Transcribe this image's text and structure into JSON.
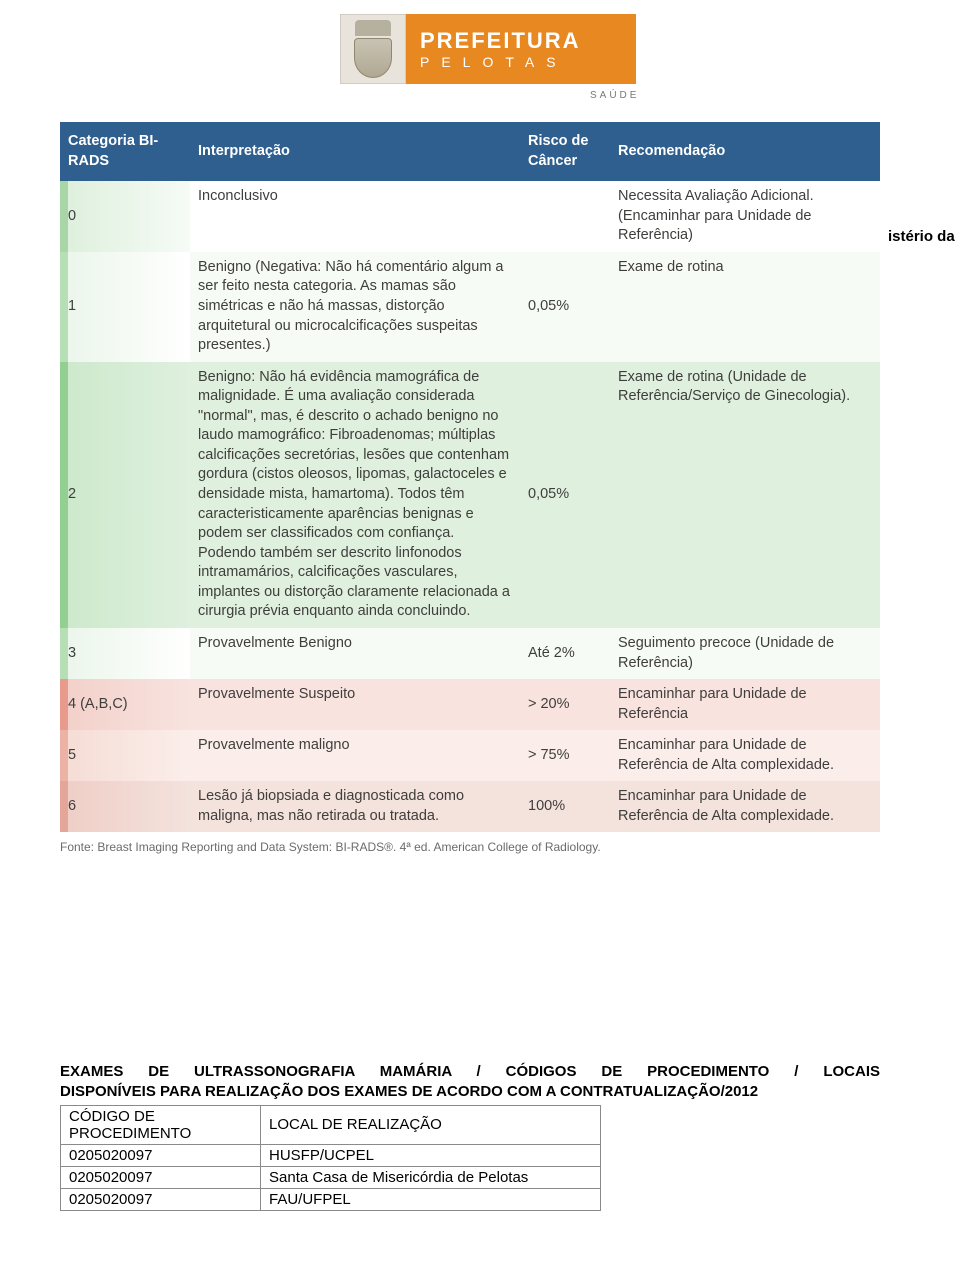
{
  "header": {
    "title": "PREFEITURA",
    "subtitle": "PELOTAS",
    "dept": "SAÚDE"
  },
  "fragment_text": "istério da",
  "birads": {
    "header_bg": "#2f5f8f",
    "header_fg": "#ffffff",
    "green_accent": "#93cf91",
    "green_fill": "#dff0de",
    "red_accent": "#e89a8c",
    "red_fill": "#f8e3df",
    "text_color": "#3f3e3c",
    "font_size_pt": 11,
    "columns": {
      "cat": "Categoria BI-RADS",
      "int": "Interpretação",
      "risk": "Risco de Câncer",
      "rec": "Recomendação"
    },
    "rows": [
      {
        "row_class": "bg-green-1",
        "cat": "0",
        "int": "Inconclusivo",
        "risk": "",
        "rec": "Necessita Avaliação Adicional. (Encaminhar para Unidade de Referência)"
      },
      {
        "row_class": "bg-green-3faint",
        "cat": "1",
        "int": "Benigno (Negativa: Não há comentário algum a ser feito nesta categoria. As mamas são simétricas e não há massas, distorção arquitetural ou microcalcificações suspeitas presentes.)",
        "risk": "0,05%",
        "rec": "Exame de rotina"
      },
      {
        "row_class": "bg-green-2solid",
        "cat": "2",
        "int": "Benigno: Não há evidência mamográfica de malignidade. É uma avaliação considerada \"normal\", mas, é descrito o achado benigno no laudo mamográfico: Fibroadenomas; múltiplas calcificações secretórias, lesões que contenham gordura (cistos oleosos, lipomas, galactoceles e densidade mista, hamartoma). Todos têm caracteristicamente aparências benignas e podem ser classificados com confiança. Podendo também ser descrito linfonodos intramamários, calcificações vasculares, implantes ou distorção claramente relacionada a cirurgia prévia enquanto ainda concluindo.",
        "risk": "0,05%",
        "rec": "Exame de rotina (Unidade de Referência/Serviço de Ginecologia)."
      },
      {
        "row_class": "bg-green-3faint",
        "cat": "3",
        "int": "Provavelmente Benigno",
        "risk": "Até 2%",
        "rec": "Seguimento precoce (Unidade de Referência)"
      },
      {
        "row_class": "bg-red",
        "cat": "4 (A,B,C)",
        "int": "Provavelmente Suspeito",
        "risk": "> 20%",
        "rec": "Encaminhar para Unidade de Referência"
      },
      {
        "row_class": "bg-red-2",
        "cat": "5",
        "int": "Provavelmente maligno",
        "risk": "> 75%",
        "rec": "Encaminhar para Unidade de Referência de Alta complexidade."
      },
      {
        "row_class": "bg-red-3",
        "cat": "6",
        "int": "Lesão já biopsiada e diagnosticada como maligna, mas não retirada ou tratada.",
        "risk": "100%",
        "rec": "Encaminhar para Unidade de Referência de Alta complexidade."
      }
    ],
    "source": "Fonte: Breast Imaging Reporting and Data System: BI-RADS®. 4ª ed. American College of Radiology."
  },
  "section2": {
    "heading_line1": "EXAMES DE ULTRASSONOGRAFIA MAMÁRIA / CÓDIGOS DE PROCEDIMENTO / LOCAIS",
    "heading_line2": "DISPONÍVEIS PARA REALIZAÇÃO DOS EXAMES DE ACORDO COM A CONTRATUALIZAÇÃO/2012",
    "table": {
      "col1_header": "CÓDIGO DE PROCEDIMENTO",
      "col2_header": "LOCAL DE REALIZAÇÃO",
      "rows": [
        {
          "code": "0205020097",
          "place": "HUSFP/UCPEL"
        },
        {
          "code": "0205020097",
          "place": "Santa Casa de Misericórdia de Pelotas"
        },
        {
          "code": "0205020097",
          "place": "FAU/UFPEL"
        }
      ]
    }
  }
}
